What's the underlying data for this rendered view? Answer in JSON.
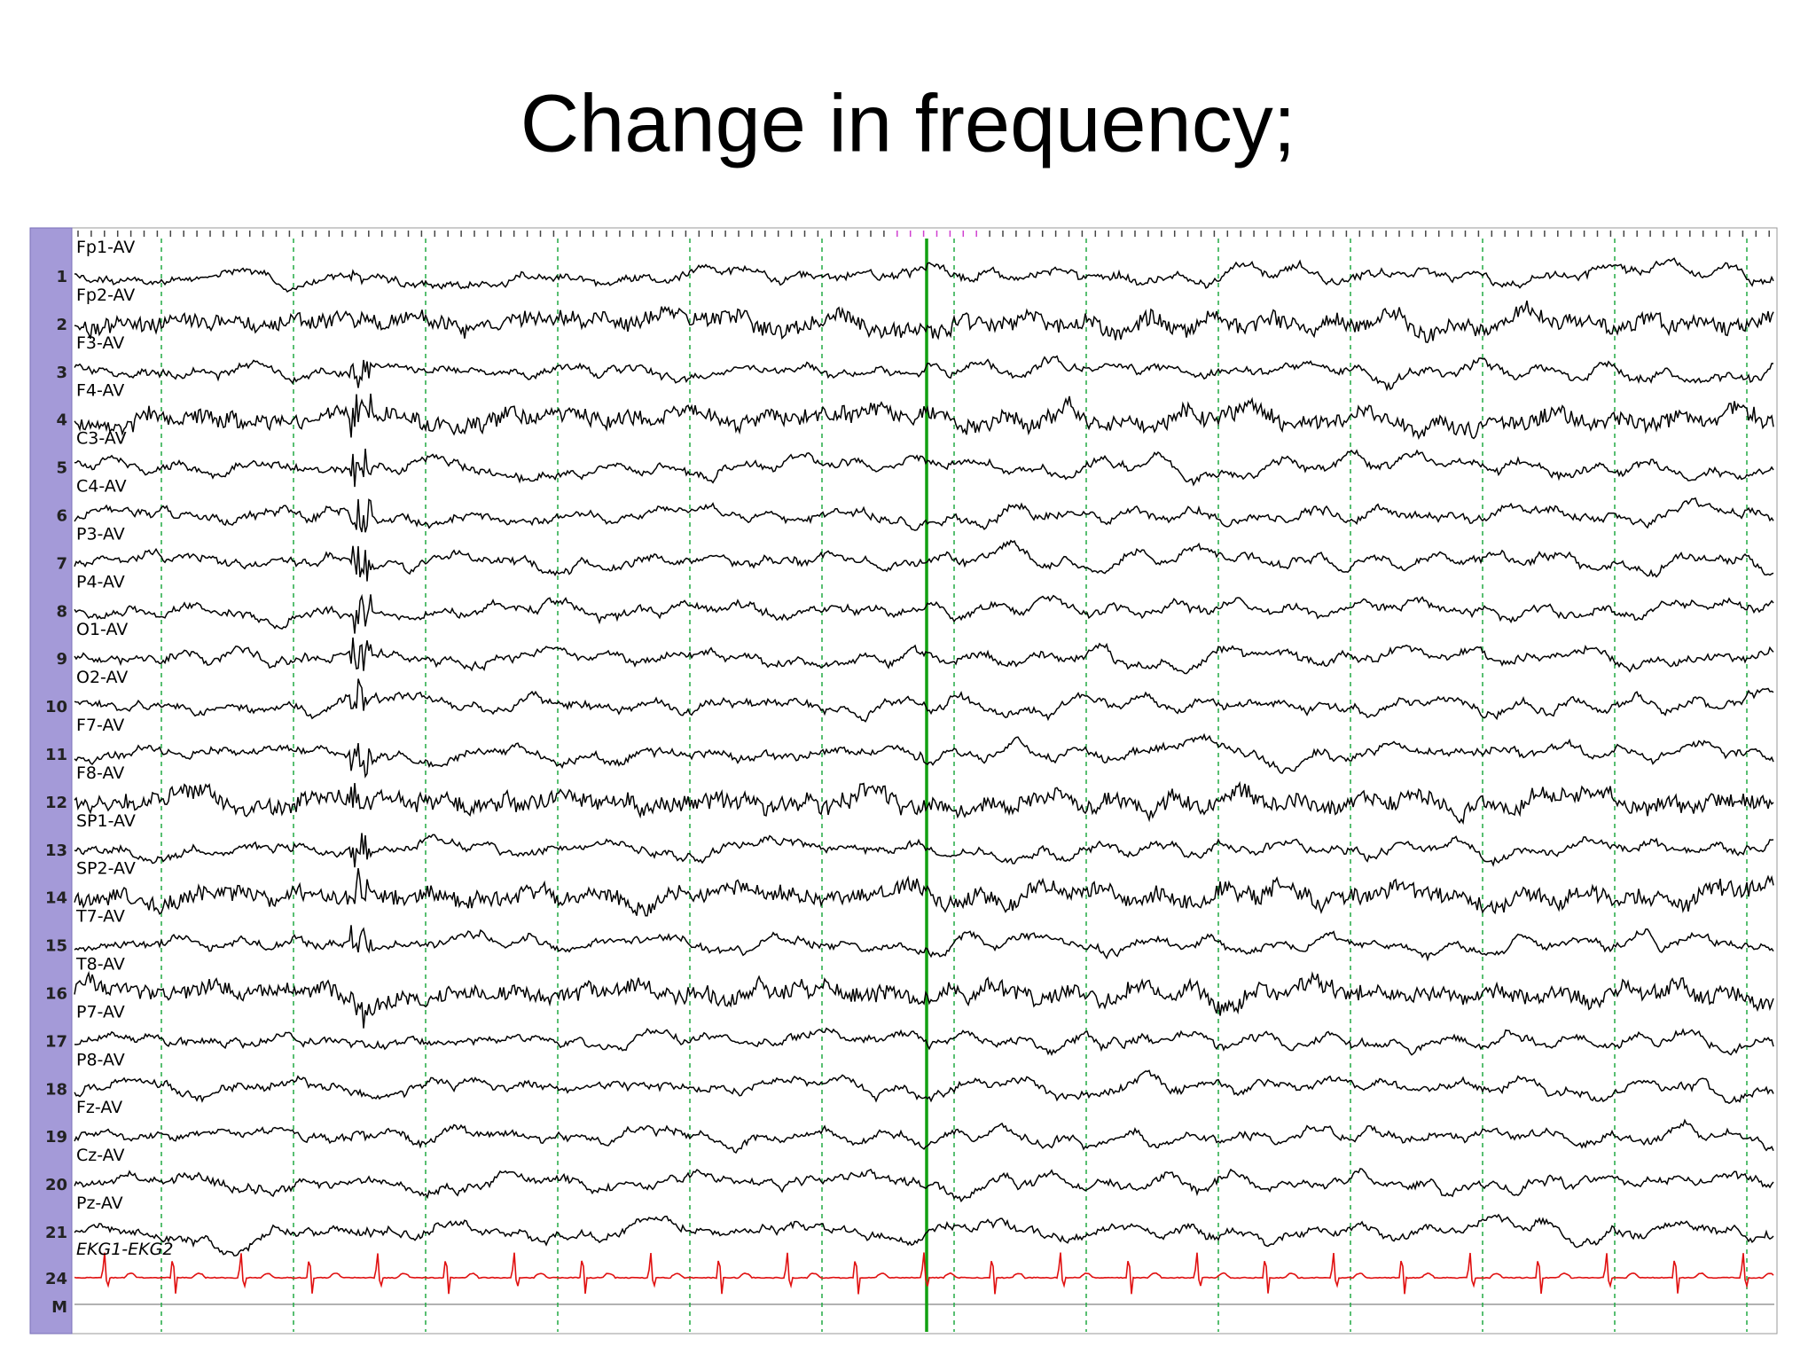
{
  "slide": {
    "title": "Change in frequency;",
    "channels": [
      {
        "number": "1",
        "label": "Fp1-AV"
      },
      {
        "number": "2",
        "label": "Fp2-AV"
      },
      {
        "number": "3",
        "label": "F3-AV"
      },
      {
        "number": "4",
        "label": "F4-AV"
      },
      {
        "number": "5",
        "label": "C3-AV"
      },
      {
        "number": "6",
        "label": "C4-AV"
      },
      {
        "number": "7",
        "label": "P3-AV"
      },
      {
        "number": "8",
        "label": "P4-AV"
      },
      {
        "number": "9",
        "label": "O1-AV"
      },
      {
        "number": "10",
        "label": "O2-AV"
      },
      {
        "number": "11",
        "label": "F7-AV"
      },
      {
        "number": "12",
        "label": "F8-AV"
      },
      {
        "number": "13",
        "label": "SP1-AV"
      },
      {
        "number": "14",
        "label": "SP2-AV"
      },
      {
        "number": "15",
        "label": "T7-AV"
      },
      {
        "number": "16",
        "label": "T8-AV"
      },
      {
        "number": "17",
        "label": "P7-AV"
      },
      {
        "number": "18",
        "label": "P8-AV"
      },
      {
        "number": "19",
        "label": "Fz-AV"
      },
      {
        "number": "20",
        "label": "Cz-AV"
      },
      {
        "number": "21",
        "label": "Pz-AV"
      },
      {
        "number": "24",
        "label": "EKG1-EKG2"
      }
    ],
    "marker_row": "M"
  }
}
